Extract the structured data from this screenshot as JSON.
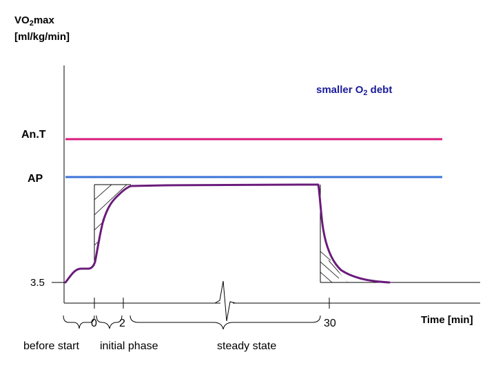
{
  "ylabel": {
    "line1_prefix": "VO",
    "line1_sub": "2",
    "line1_suffix": "max",
    "line2": "[ml/kg/min]"
  },
  "annotation": {
    "prefix": "smaller O",
    "sub": "2",
    "suffix": " debt"
  },
  "levels": {
    "ant": {
      "label": "An.T",
      "color": "#d81b7a"
    },
    "ap": {
      "label": "AP",
      "color": "#3b73d9"
    },
    "baseline": {
      "label": "3.5"
    }
  },
  "x_ticks": [
    "0",
    "2",
    "30"
  ],
  "xlabel": "Time [min]",
  "phases": [
    "before start",
    "initial phase",
    "steady state"
  ],
  "curve_color": "#6a1b7a"
}
